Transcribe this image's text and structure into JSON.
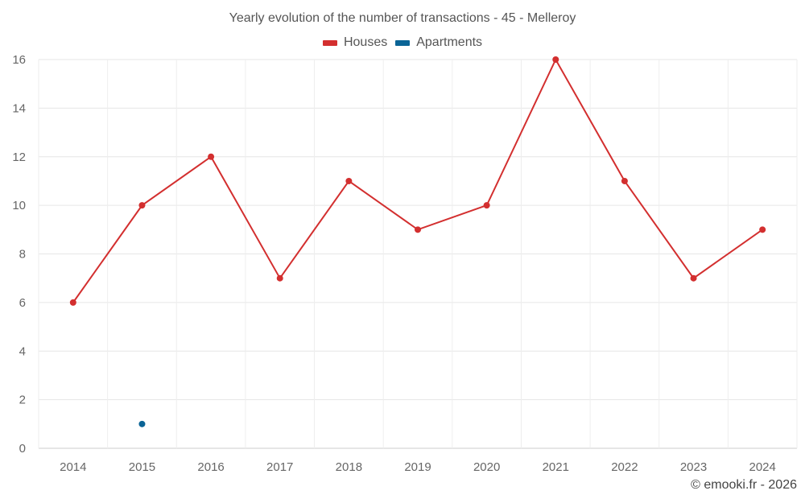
{
  "chart_data": {
    "type": "line",
    "title": "Yearly evolution of the number of transactions - 45 - Melleroy",
    "categories": [
      "2014",
      "2015",
      "2016",
      "2017",
      "2018",
      "2019",
      "2020",
      "2021",
      "2022",
      "2023",
      "2024"
    ],
    "series": [
      {
        "name": "Houses",
        "color": "#d32f2f",
        "values": [
          6,
          10,
          12,
          7,
          11,
          9,
          10,
          16,
          11,
          7,
          9
        ]
      },
      {
        "name": "Apartments",
        "color": "#0a6496",
        "values": [
          null,
          1,
          null,
          null,
          null,
          null,
          null,
          null,
          null,
          null,
          null
        ]
      }
    ],
    "ylim": [
      0,
      16
    ],
    "yticks": [
      0,
      2,
      4,
      6,
      8,
      10,
      12,
      14,
      16
    ],
    "grid": true,
    "legend_position": "top-center"
  },
  "credit": "© emooki.fr - 2026"
}
